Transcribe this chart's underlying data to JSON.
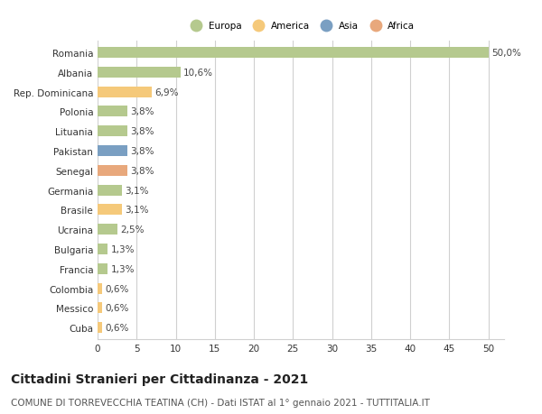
{
  "countries": [
    "Romania",
    "Albania",
    "Rep. Dominicana",
    "Polonia",
    "Lituania",
    "Pakistan",
    "Senegal",
    "Germania",
    "Brasile",
    "Ucraina",
    "Bulgaria",
    "Francia",
    "Colombia",
    "Messico",
    "Cuba"
  ],
  "values": [
    50.0,
    10.6,
    6.9,
    3.8,
    3.8,
    3.8,
    3.8,
    3.1,
    3.1,
    2.5,
    1.3,
    1.3,
    0.6,
    0.6,
    0.6
  ],
  "labels": [
    "50,0%",
    "10,6%",
    "6,9%",
    "3,8%",
    "3,8%",
    "3,8%",
    "3,8%",
    "3,1%",
    "3,1%",
    "2,5%",
    "1,3%",
    "1,3%",
    "0,6%",
    "0,6%",
    "0,6%"
  ],
  "colors": [
    "#b5c98e",
    "#b5c98e",
    "#f5c97a",
    "#b5c98e",
    "#b5c98e",
    "#7a9fc2",
    "#e8a87c",
    "#b5c98e",
    "#f5c97a",
    "#b5c98e",
    "#b5c98e",
    "#b5c98e",
    "#f5c97a",
    "#f5c97a",
    "#f5c97a"
  ],
  "legend": {
    "Europa": "#b5c98e",
    "America": "#f5c97a",
    "Asia": "#7a9fc2",
    "Africa": "#e8a87c"
  },
  "xlim": [
    0,
    52
  ],
  "xticks": [
    0,
    5,
    10,
    15,
    20,
    25,
    30,
    35,
    40,
    45,
    50
  ],
  "title": "Cittadini Stranieri per Cittadinanza - 2021",
  "subtitle": "COMUNE DI TORREVECCHIA TEATINA (CH) - Dati ISTAT al 1° gennaio 2021 - TUTTITALIA.IT",
  "bg_color": "#ffffff",
  "grid_color": "#d0d0d0",
  "bar_height": 0.55,
  "title_fontsize": 10,
  "subtitle_fontsize": 7.5,
  "label_fontsize": 7.5,
  "tick_fontsize": 7.5
}
